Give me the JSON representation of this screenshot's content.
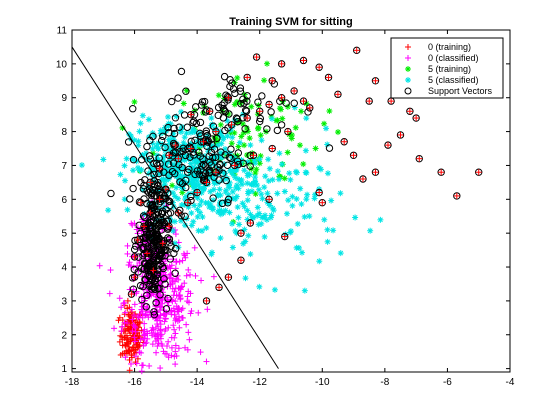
{
  "chart_data": {
    "type": "scatter",
    "title": "Training SVM for sitting",
    "xlabel": "",
    "ylabel": "",
    "xlim": [
      -18,
      -4
    ],
    "ylim": [
      0.9,
      11
    ],
    "x_ticks": [
      "-18",
      "-16",
      "-14",
      "-12",
      "-10",
      "-8",
      "-6",
      "-4"
    ],
    "y_ticks": [
      "1",
      "2",
      "3",
      "4",
      "5",
      "6",
      "7",
      "8",
      "9",
      "10",
      "11"
    ],
    "grid": false,
    "legend_position": "top-right",
    "series": [
      {
        "name": "0 (training)",
        "marker": "plus",
        "color": "#ff0000",
        "clusters": [
          {
            "cx": -16.1,
            "cy": 2.0,
            "sx": 0.18,
            "sy": 0.4,
            "n": 140
          }
        ]
      },
      {
        "name": "0 (classified)",
        "marker": "plus",
        "color": "#ff00ff",
        "clusters": [
          {
            "cx": -15.2,
            "cy": 3.0,
            "sx": 0.55,
            "sy": 0.9,
            "n": 420
          },
          {
            "cx": -15.6,
            "cy": 4.6,
            "sx": 0.3,
            "sy": 0.6,
            "n": 90
          }
        ]
      },
      {
        "name": "5 (training)",
        "marker": "star",
        "color": "#00ee00",
        "clusters": [
          {
            "cx": -12.6,
            "cy": 7.9,
            "sx": 1.3,
            "sy": 0.9,
            "n": 110
          }
        ]
      },
      {
        "name": "5 (classified)",
        "marker": "star",
        "color": "#00e5e5",
        "clusters": [
          {
            "cx": -14.3,
            "cy": 6.9,
            "sx": 0.9,
            "sy": 0.7,
            "n": 420
          },
          {
            "cx": -12.0,
            "cy": 5.8,
            "sx": 1.3,
            "sy": 1.0,
            "n": 160
          }
        ]
      },
      {
        "name": "Support Vectors",
        "marker": "circle",
        "color": "#000000",
        "points": [
          [
            -8.9,
            10.4
          ],
          [
            -9.8,
            9.6
          ],
          [
            -9.5,
            9.1
          ],
          [
            -8.3,
            9.5
          ],
          [
            -8.5,
            8.9
          ],
          [
            -7.8,
            8.9
          ],
          [
            -7.2,
            8.6
          ],
          [
            -7.0,
            8.4
          ],
          [
            -7.5,
            7.9
          ],
          [
            -7.9,
            7.6
          ],
          [
            -6.9,
            7.2
          ],
          [
            -6.2,
            6.8
          ],
          [
            -5.0,
            6.8
          ],
          [
            -5.7,
            6.1
          ],
          [
            -8.3,
            6.8
          ],
          [
            -8.7,
            6.6
          ],
          [
            -9.0,
            7.3
          ],
          [
            -9.3,
            7.7
          ],
          [
            -10.4,
            8.7
          ],
          [
            -10.1,
            6.2
          ],
          [
            -10.0,
            5.9
          ],
          [
            -10.6,
            8.9
          ],
          [
            -10.9,
            9.2
          ],
          [
            -11.3,
            9.0
          ],
          [
            -11.7,
            8.8
          ],
          [
            -12.0,
            8.6
          ],
          [
            -12.4,
            8.4
          ],
          [
            -12.9,
            8.2
          ],
          [
            -13.4,
            8.0
          ],
          [
            -13.8,
            7.7
          ],
          [
            -14.2,
            7.5
          ],
          [
            -14.6,
            7.2
          ],
          [
            -11.1,
            8.0
          ],
          [
            -11.6,
            7.5
          ],
          [
            -12.2,
            7.3
          ],
          [
            -12.8,
            7.0
          ],
          [
            -11.6,
            9.5
          ],
          [
            -12.4,
            9.6
          ],
          [
            -13.0,
            9.0
          ],
          [
            -13.6,
            8.6
          ],
          [
            -14.2,
            8.5
          ],
          [
            -12.1,
            10.2
          ],
          [
            -11.3,
            10.0
          ],
          [
            -10.6,
            10.1
          ],
          [
            -10.1,
            9.9
          ],
          [
            -11.7,
            6.0
          ],
          [
            -12.3,
            5.3
          ],
          [
            -12.6,
            5.0
          ],
          [
            -11.2,
            4.9
          ],
          [
            -12.6,
            4.2
          ],
          [
            -13.0,
            3.7
          ],
          [
            -13.3,
            3.4
          ],
          [
            -13.7,
            3.0
          ],
          [
            -15.0,
            6.3
          ],
          [
            -15.2,
            6.0
          ],
          [
            -15.5,
            5.6
          ],
          [
            -15.7,
            5.2
          ],
          [
            -15.9,
            4.8
          ],
          [
            -16.0,
            4.3
          ],
          [
            -16.0,
            3.7
          ],
          [
            -16.1,
            3.2
          ],
          [
            -15.8,
            5.9
          ],
          [
            -15.5,
            6.5
          ],
          [
            -15.2,
            6.9
          ],
          [
            -14.9,
            7.3
          ],
          [
            -14.7,
            7.6
          ],
          [
            -15.4,
            3.9
          ],
          [
            -15.6,
            4.4
          ],
          [
            -15.1,
            4.7
          ],
          [
            -14.9,
            5.2
          ],
          [
            -14.6,
            5.6
          ],
          [
            -14.3,
            5.9
          ],
          [
            -14.0,
            6.2
          ],
          [
            -13.7,
            6.5
          ],
          [
            -13.4,
            6.8
          ]
        ],
        "clusters": [
          {
            "cx": -15.4,
            "cy": 4.8,
            "sx": 0.25,
            "sy": 0.95,
            "n": 260
          },
          {
            "cx": -14.1,
            "cy": 7.3,
            "sx": 0.8,
            "sy": 0.75,
            "n": 130
          },
          {
            "cx": -12.6,
            "cy": 8.7,
            "sx": 1.0,
            "sy": 0.55,
            "n": 60
          }
        ]
      }
    ],
    "decision_boundary": [
      [
        -18,
        10.5
      ],
      [
        -11.4,
        1.0
      ]
    ]
  }
}
